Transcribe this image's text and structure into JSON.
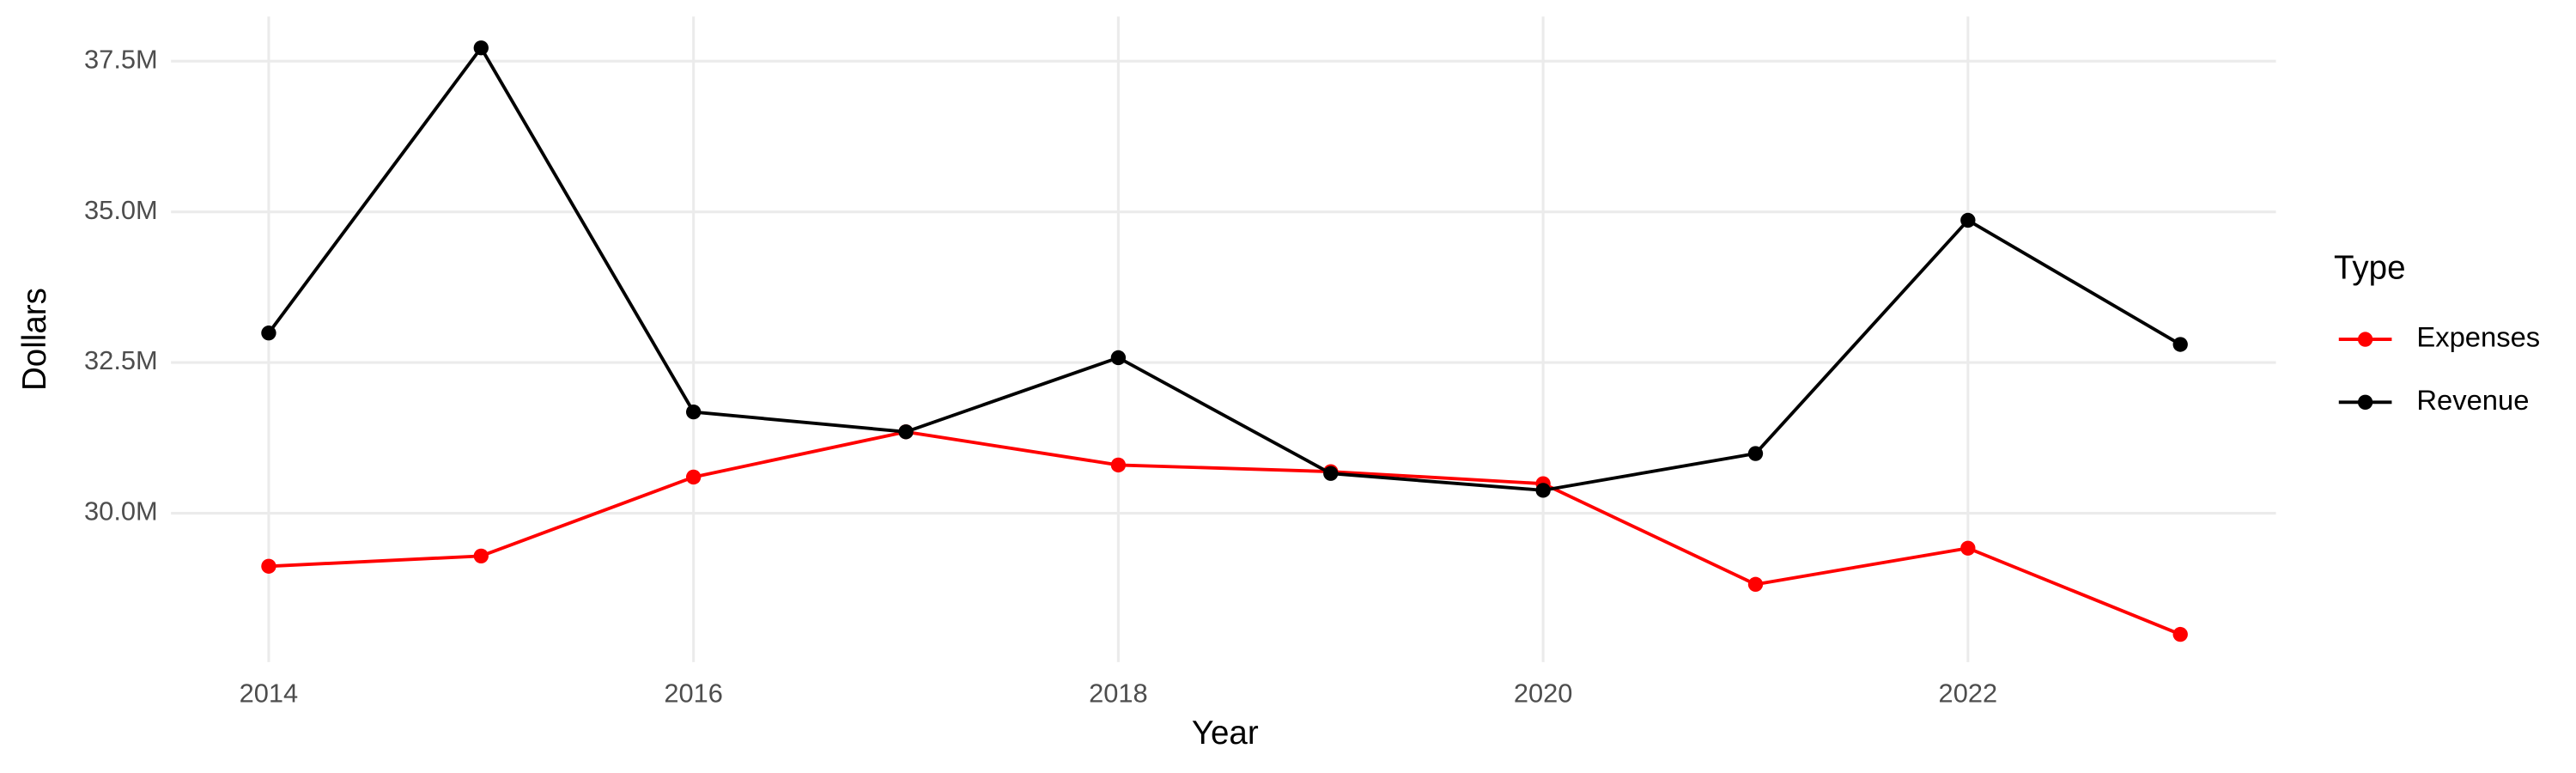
{
  "chart_data": {
    "type": "line",
    "x_label": "Year",
    "y_label": "Dollars",
    "x": [
      2014,
      2015,
      2016,
      2017,
      2018,
      2019,
      2020,
      2021,
      2022,
      2023
    ],
    "series": [
      {
        "name": "Expenses",
        "color": "#ff0000",
        "values": [
          29120000,
          29290000,
          30600000,
          31350000,
          30800000,
          30690000,
          30490000,
          28820000,
          29420000,
          27990000
        ]
      },
      {
        "name": "Revenue",
        "color": "#000000",
        "values": [
          32990000,
          37720000,
          31680000,
          31350000,
          32580000,
          30660000,
          30380000,
          30990000,
          34860000,
          32800000
        ]
      }
    ],
    "xlim": [
      2013.54,
      2023.45
    ],
    "xticks": [
      2014,
      2016,
      2018,
      2020,
      2022
    ],
    "ylim": [
      27530000,
      38240000
    ],
    "yticks": [
      {
        "value": 30000000,
        "label": "30.0M"
      },
      {
        "value": 32500000,
        "label": "32.5M"
      },
      {
        "value": 35000000,
        "label": "35.0M"
      },
      {
        "value": 37500000,
        "label": "37.5M"
      }
    ],
    "grid": true,
    "legend_title": "Type",
    "legend_position": "right"
  }
}
